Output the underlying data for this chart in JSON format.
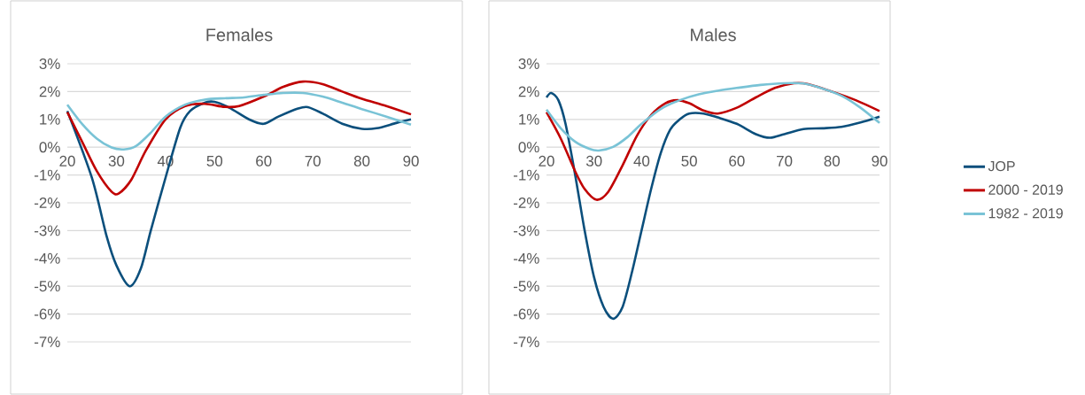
{
  "chart_data": [
    {
      "type": "line",
      "title": "Females",
      "xlim": [
        20,
        90
      ],
      "xticks": [
        20,
        30,
        40,
        50,
        60,
        70,
        80,
        90
      ],
      "ylim": [
        -7,
        3
      ],
      "yticks": [
        {
          "value": -7,
          "label": "-7%"
        },
        {
          "value": -6,
          "label": "-6%"
        },
        {
          "value": -5,
          "label": "-5%"
        },
        {
          "value": -4,
          "label": "-4%"
        },
        {
          "value": -3,
          "label": "-3%"
        },
        {
          "value": -2,
          "label": "-2%"
        },
        {
          "value": -1,
          "label": "-1%"
        },
        {
          "value": 0,
          "label": "0%"
        },
        {
          "value": 1,
          "label": "1%"
        },
        {
          "value": 2,
          "label": "2%"
        },
        {
          "value": 3,
          "label": "3%"
        }
      ],
      "grid": "y",
      "marker": "none",
      "line_style": "solid",
      "series": [
        {
          "color": "#0b4f7c",
          "x": [
            20,
            25,
            28,
            30,
            32.7,
            35,
            37,
            40,
            43,
            45,
            48,
            50,
            53,
            57,
            60,
            63,
            67,
            69,
            72,
            76,
            80,
            83,
            87,
            90
          ],
          "values": [
            1.3,
            -1.1,
            -3.2,
            -4.25,
            -5.0,
            -4.35,
            -3.0,
            -1.1,
            0.7,
            1.3,
            1.6,
            1.63,
            1.42,
            1.0,
            0.84,
            1.1,
            1.39,
            1.44,
            1.21,
            0.84,
            0.66,
            0.68,
            0.87,
            1.0
          ]
        },
        {
          "color": "#c00000",
          "x": [
            20,
            23,
            26,
            29,
            30.5,
            33,
            36,
            40,
            44,
            48,
            52,
            55,
            60,
            64,
            68,
            72,
            76,
            80,
            85,
            90
          ],
          "values": [
            1.26,
            0.2,
            -0.86,
            -1.6,
            -1.66,
            -1.18,
            -0.12,
            1.0,
            1.48,
            1.56,
            1.45,
            1.48,
            1.82,
            2.17,
            2.36,
            2.27,
            2.0,
            1.74,
            1.48,
            1.18
          ]
        },
        {
          "color": "#79c3d6",
          "x": [
            20,
            23,
            26,
            29,
            31.5,
            34,
            37,
            40,
            44,
            48,
            52,
            56,
            60,
            64,
            68,
            72,
            76,
            80,
            85,
            90
          ],
          "values": [
            1.53,
            0.84,
            0.31,
            -0.01,
            -0.08,
            0.04,
            0.52,
            1.1,
            1.53,
            1.71,
            1.76,
            1.79,
            1.88,
            1.95,
            1.95,
            1.82,
            1.6,
            1.37,
            1.1,
            0.81
          ]
        }
      ]
    },
    {
      "type": "line",
      "title": "Males",
      "xlim": [
        20,
        90
      ],
      "xticks": [
        20,
        30,
        40,
        50,
        60,
        70,
        80,
        90
      ],
      "ylim": [
        -7,
        3
      ],
      "yticks": [
        {
          "value": -7,
          "label": "-7%"
        },
        {
          "value": -6,
          "label": "-6%"
        },
        {
          "value": -5,
          "label": "-5%"
        },
        {
          "value": -4,
          "label": "-4%"
        },
        {
          "value": -3,
          "label": "-3%"
        },
        {
          "value": -2,
          "label": "-2%"
        },
        {
          "value": -1,
          "label": "-1%"
        },
        {
          "value": 0,
          "label": "0%"
        },
        {
          "value": 1,
          "label": "1%"
        },
        {
          "value": 2,
          "label": "2%"
        },
        {
          "value": 3,
          "label": "3%"
        }
      ],
      "grid": "y",
      "legend": "right",
      "marker": "none",
      "line_style": "solid",
      "series": [
        {
          "name": "JOP",
          "color": "#0b4f7c",
          "x": [
            20,
            21,
            22.5,
            24,
            26,
            28,
            30,
            32,
            34,
            36,
            38,
            40,
            42,
            44,
            46,
            48,
            50,
            53,
            56,
            60,
            64,
            67,
            70,
            74,
            78,
            82,
            86,
            90
          ],
          "values": [
            1.79,
            1.95,
            1.69,
            0.84,
            -0.97,
            -2.98,
            -4.68,
            -5.74,
            -6.17,
            -5.74,
            -4.47,
            -2.98,
            -1.5,
            -0.22,
            0.63,
            1.0,
            1.21,
            1.21,
            1.07,
            0.84,
            0.47,
            0.34,
            0.47,
            0.65,
            0.68,
            0.73,
            0.89,
            1.1
          ]
        },
        {
          "name": "2000 - 2019",
          "color": "#c00000",
          "x": [
            20,
            23,
            26,
            28,
            30.5,
            33,
            36,
            39,
            42,
            45,
            47.5,
            50,
            53,
            56,
            60,
            64,
            68,
            72,
            75,
            80,
            85,
            90
          ],
          "values": [
            1.26,
            0.31,
            -0.86,
            -1.5,
            -1.89,
            -1.6,
            -0.65,
            0.41,
            1.16,
            1.58,
            1.69,
            1.58,
            1.32,
            1.21,
            1.42,
            1.79,
            2.13,
            2.3,
            2.27,
            2.0,
            1.69,
            1.3
          ]
        },
        {
          "name": "1982 - 2019",
          "color": "#79c3d6",
          "x": [
            20,
            23,
            26,
            29,
            31,
            34,
            37,
            40,
            44,
            48,
            52,
            56,
            60,
            65,
            70,
            74,
            78,
            82,
            86,
            90
          ],
          "values": [
            1.35,
            0.68,
            0.2,
            -0.06,
            -0.12,
            0.01,
            0.36,
            0.84,
            1.37,
            1.69,
            1.9,
            2.03,
            2.13,
            2.24,
            2.3,
            2.29,
            2.11,
            1.85,
            1.42,
            0.87
          ]
        }
      ]
    }
  ]
}
